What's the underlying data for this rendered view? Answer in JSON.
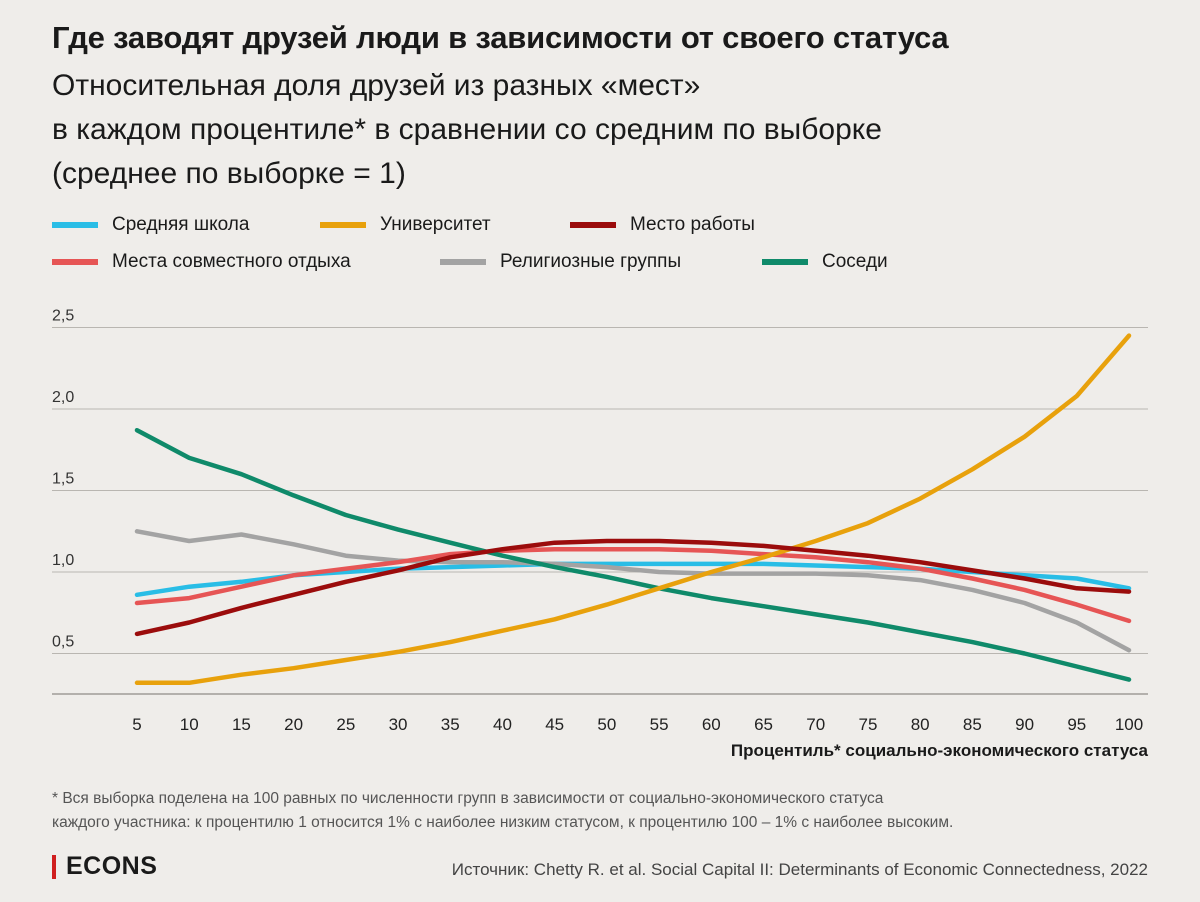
{
  "title": "Где заводят друзей люди в зависимости от своего статуса",
  "subtitle_lines": [
    "Относительная доля друзей из разных «мест»",
    "в каждом процентиле* в сравнении со средним по выборке",
    "(среднее по выборке = 1)"
  ],
  "legend": [
    {
      "label": "Средняя школа",
      "color": "#29bde6"
    },
    {
      "label": "Университет",
      "color": "#e8a10c"
    },
    {
      "label": "Место работы",
      "color": "#9b0c0c"
    },
    {
      "label": "Места совместного отдыха",
      "color": "#e65555"
    },
    {
      "label": "Религиозные группы",
      "color": "#a3a3a3"
    },
    {
      "label": "Соседи",
      "color": "#0f8a6a"
    }
  ],
  "chart_data": {
    "type": "line",
    "x": [
      5,
      10,
      15,
      20,
      25,
      30,
      35,
      40,
      45,
      50,
      55,
      60,
      65,
      70,
      75,
      80,
      85,
      90,
      95,
      100
    ],
    "ylim": [
      0.25,
      2.5
    ],
    "yticks": [
      0.5,
      1.0,
      1.5,
      2.0,
      2.5
    ],
    "ytick_labels": [
      "0,5",
      "1,0",
      "1,5",
      "2,0",
      "2,5"
    ],
    "xtick_labels": [
      "5",
      "10",
      "15",
      "20",
      "25",
      "30",
      "35",
      "40",
      "45",
      "50",
      "55",
      "60",
      "65",
      "70",
      "75",
      "80",
      "85",
      "90",
      "95",
      "100"
    ],
    "xlabel": "Процентиль* социально-экономического статуса",
    "ylabel": "",
    "series": [
      {
        "name": "Средняя школа",
        "color": "#29bde6",
        "values": [
          0.86,
          0.91,
          0.94,
          0.98,
          1.0,
          1.02,
          1.03,
          1.04,
          1.05,
          1.05,
          1.05,
          1.05,
          1.05,
          1.04,
          1.03,
          1.02,
          1.0,
          0.98,
          0.96,
          0.9
        ]
      },
      {
        "name": "Университет",
        "color": "#e8a10c",
        "values": [
          0.32,
          0.32,
          0.37,
          0.41,
          0.46,
          0.51,
          0.57,
          0.64,
          0.71,
          0.8,
          0.9,
          1.0,
          1.09,
          1.19,
          1.3,
          1.45,
          1.63,
          1.83,
          2.08,
          2.45
        ]
      },
      {
        "name": "Место работы",
        "color": "#9b0c0c",
        "values": [
          0.62,
          0.69,
          0.78,
          0.86,
          0.94,
          1.01,
          1.09,
          1.14,
          1.18,
          1.19,
          1.19,
          1.18,
          1.16,
          1.13,
          1.1,
          1.06,
          1.01,
          0.96,
          0.9,
          0.88
        ]
      },
      {
        "name": "Места совместного отдыха",
        "color": "#e65555",
        "values": [
          0.81,
          0.84,
          0.91,
          0.98,
          1.02,
          1.06,
          1.11,
          1.13,
          1.14,
          1.14,
          1.14,
          1.13,
          1.11,
          1.09,
          1.06,
          1.02,
          0.96,
          0.89,
          0.8,
          0.7
        ]
      },
      {
        "name": "Религиозные группы",
        "color": "#a3a3a3",
        "values": [
          1.25,
          1.19,
          1.23,
          1.17,
          1.1,
          1.07,
          1.06,
          1.06,
          1.05,
          1.03,
          1.0,
          0.99,
          0.99,
          0.99,
          0.98,
          0.95,
          0.89,
          0.81,
          0.69,
          0.52
        ]
      },
      {
        "name": "Соседи",
        "color": "#0f8a6a",
        "values": [
          1.87,
          1.7,
          1.6,
          1.47,
          1.35,
          1.26,
          1.18,
          1.1,
          1.03,
          0.97,
          0.9,
          0.84,
          0.79,
          0.74,
          0.69,
          0.63,
          0.57,
          0.5,
          0.42,
          0.34
        ]
      }
    ]
  },
  "footnote_lines": [
    "* Вся выборка поделена на 100 равных по численности групп в зависимости от социально-экономического статуса",
    "каждого участника: к процентилю 1 относится 1% с наиболее низким статусом, к процентилю 100 – 1% с наиболее высоким."
  ],
  "brand": "ECONS",
  "source": "Источник: Chetty R. et al. Social Capital II: Determinants of Economic Connectedness, 2022"
}
